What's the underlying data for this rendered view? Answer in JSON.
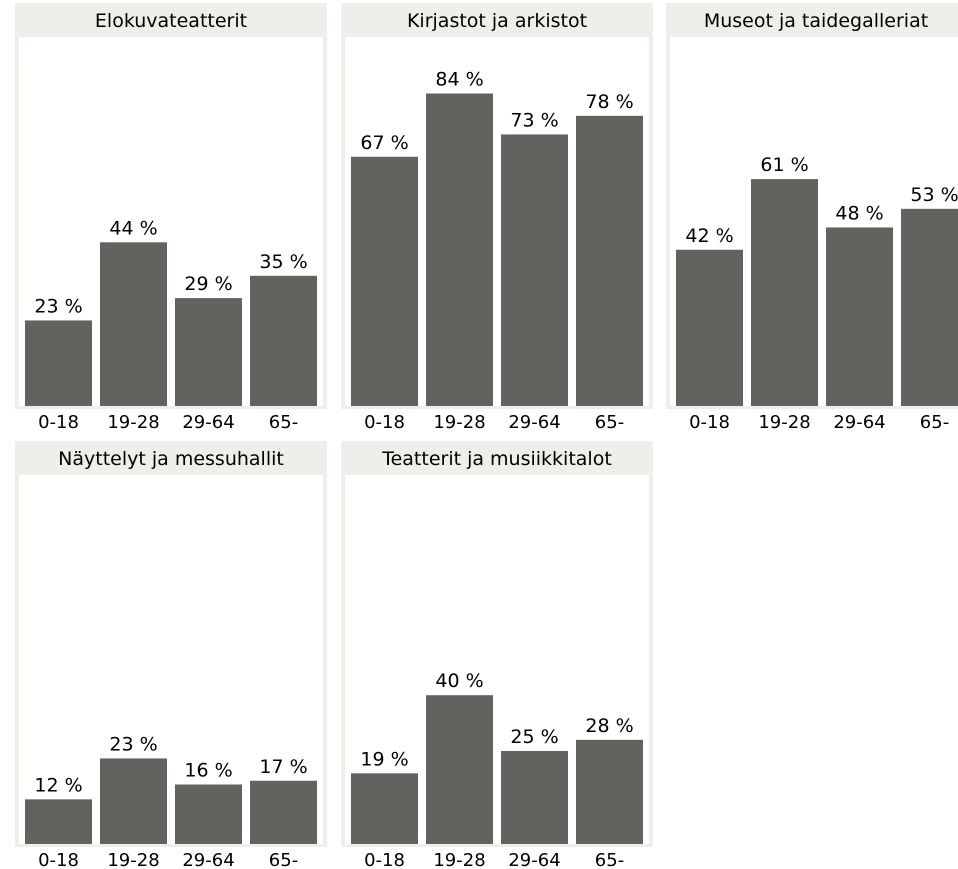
{
  "chart_data": [
    {
      "type": "bar",
      "title": "Elokuvateatterit",
      "categories": [
        "0-18",
        "19-28",
        "29-64",
        "65-"
      ],
      "values": [
        23,
        44,
        29,
        35
      ],
      "value_labels": [
        "23 %",
        "44 %",
        "29 %",
        "35 %"
      ],
      "ylim": [
        0,
        100
      ],
      "xlabel": "",
      "ylabel": ""
    },
    {
      "type": "bar",
      "title": "Kirjastot ja arkistot",
      "categories": [
        "0-18",
        "19-28",
        "29-64",
        "65-"
      ],
      "values": [
        67,
        84,
        73,
        78
      ],
      "value_labels": [
        "67 %",
        "84 %",
        "73 %",
        "78 %"
      ],
      "ylim": [
        0,
        100
      ],
      "xlabel": "",
      "ylabel": ""
    },
    {
      "type": "bar",
      "title": "Museot ja taidegalleriat",
      "categories": [
        "0-18",
        "19-28",
        "29-64",
        "65-"
      ],
      "values": [
        42,
        61,
        48,
        53
      ],
      "value_labels": [
        "42 %",
        "61 %",
        "48 %",
        "53 %"
      ],
      "ylim": [
        0,
        100
      ],
      "xlabel": "",
      "ylabel": ""
    },
    {
      "type": "bar",
      "title": "Näyttelyt ja messuhallit",
      "categories": [
        "0-18",
        "19-28",
        "29-64",
        "65-"
      ],
      "values": [
        12,
        23,
        16,
        17
      ],
      "value_labels": [
        "12 %",
        "23 %",
        "16 %",
        "17 %"
      ],
      "ylim": [
        0,
        100
      ],
      "xlabel": "",
      "ylabel": ""
    },
    {
      "type": "bar",
      "title": "Teatterit ja musiikkitalot",
      "categories": [
        "0-18",
        "19-28",
        "29-64",
        "65-"
      ],
      "values": [
        19,
        40,
        25,
        28
      ],
      "value_labels": [
        "19 %",
        "40 %",
        "25 %",
        "28 %"
      ],
      "ylim": [
        0,
        100
      ],
      "xlabel": "",
      "ylabel": ""
    }
  ],
  "colors": {
    "bar": "#64625e",
    "panel_bg": "#efeeeb",
    "plot_bg": "#ffffff",
    "text": "#000000"
  }
}
